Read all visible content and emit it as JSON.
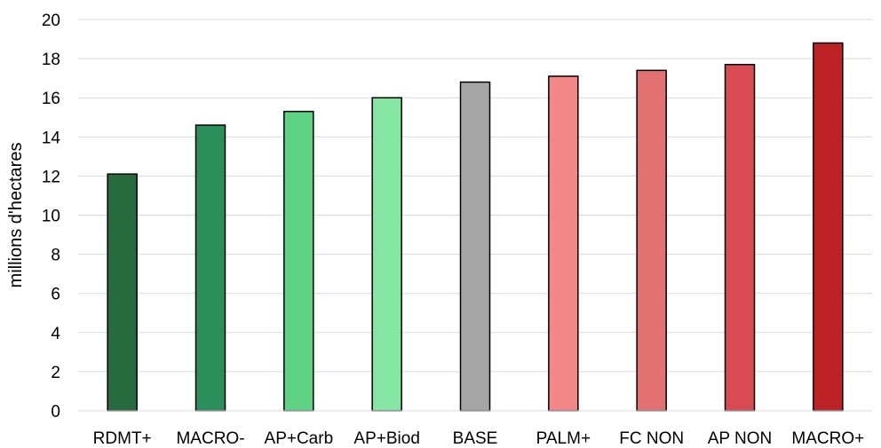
{
  "chart_data": {
    "type": "bar",
    "ylabel": "millions d'hectares",
    "ylim": [
      0,
      20
    ],
    "yticks": [
      0,
      2,
      4,
      6,
      8,
      10,
      12,
      14,
      16,
      18,
      20
    ],
    "grid": true,
    "categories": [
      "RDMT+",
      "MACRO-",
      "AP+Carb",
      "AP+Biod",
      "BASE",
      "PALM+",
      "FC NON",
      "AP NON",
      "MACRO+"
    ],
    "values": [
      12.1,
      14.6,
      15.3,
      16.0,
      16.8,
      17.1,
      17.4,
      17.7,
      18.8
    ],
    "colors": [
      "#276b3f",
      "#2b8f5c",
      "#5ed384",
      "#85e6a3",
      "#a5a5a5",
      "#f48787",
      "#e37171",
      "#d94b52",
      "#bd2226"
    ]
  }
}
